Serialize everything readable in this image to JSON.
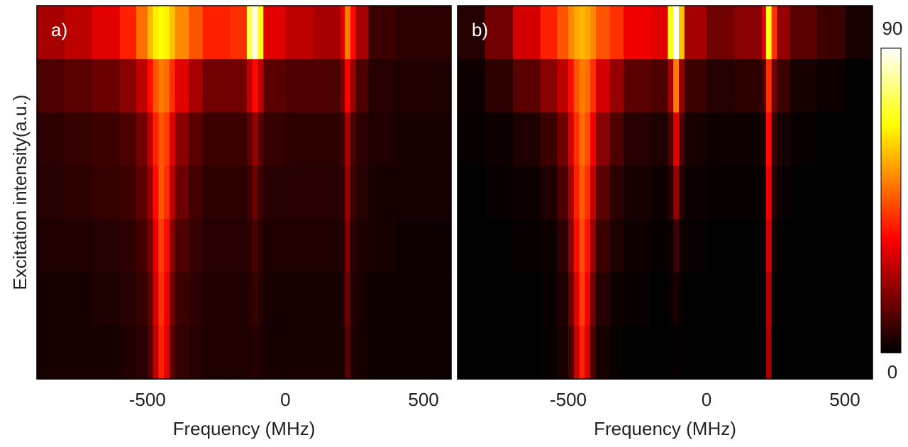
{
  "chart_data": [
    {
      "type": "heatmap",
      "label": "a)",
      "xlabel": "Frequency (MHz)",
      "ylabel": "Excitation intensity(a.u.)",
      "xlim": [
        -900,
        600
      ],
      "xticks": [
        -500,
        0,
        500
      ],
      "colormap": "hot",
      "zlim": [
        0,
        90
      ],
      "xbins": [
        -900,
        -800,
        -700,
        -600,
        -540,
        -500,
        -480,
        -460,
        -440,
        -420,
        -400,
        -350,
        -300,
        -200,
        -140,
        -120,
        -100,
        -80,
        0,
        100,
        200,
        215,
        235,
        255,
        300,
        400,
        500,
        600
      ],
      "z": [
        [
          22,
          25,
          30,
          38,
          48,
          58,
          65,
          68,
          66,
          60,
          52,
          45,
          38,
          40,
          75,
          88,
          70,
          30,
          25,
          22,
          30,
          50,
          35,
          22,
          8,
          6,
          6
        ],
        [
          10,
          12,
          14,
          18,
          25,
          35,
          45,
          50,
          48,
          40,
          30,
          22,
          15,
          15,
          25,
          35,
          25,
          12,
          10,
          10,
          15,
          33,
          20,
          10,
          5,
          4,
          4
        ],
        [
          6,
          7,
          8,
          10,
          15,
          25,
          38,
          45,
          42,
          30,
          18,
          12,
          8,
          8,
          12,
          20,
          12,
          7,
          6,
          6,
          8,
          22,
          10,
          6,
          4,
          3,
          3
        ],
        [
          5,
          6,
          7,
          8,
          12,
          20,
          35,
          45,
          40,
          25,
          14,
          9,
          6,
          6,
          8,
          14,
          8,
          5,
          5,
          5,
          6,
          20,
          8,
          5,
          3,
          3,
          3
        ],
        [
          4,
          4,
          5,
          6,
          9,
          15,
          30,
          42,
          35,
          18,
          10,
          7,
          5,
          5,
          6,
          10,
          6,
          4,
          4,
          4,
          5,
          17,
          6,
          4,
          3,
          2,
          2
        ],
        [
          3,
          3,
          4,
          5,
          7,
          12,
          28,
          40,
          32,
          15,
          8,
          6,
          4,
          4,
          5,
          7,
          5,
          3,
          3,
          3,
          4,
          14,
          5,
          3,
          2,
          2,
          2
        ],
        [
          3,
          3,
          3,
          4,
          6,
          10,
          25,
          38,
          30,
          12,
          7,
          5,
          4,
          4,
          4,
          5,
          4,
          3,
          3,
          3,
          3,
          12,
          4,
          3,
          2,
          2,
          2
        ]
      ]
    },
    {
      "type": "heatmap",
      "label": "b)",
      "xlabel": "Frequency (MHz)",
      "xlim": [
        -900,
        600
      ],
      "xticks": [
        -500,
        0,
        500
      ],
      "colormap": "hot",
      "zlim": [
        0,
        90
      ],
      "zticks": [
        0,
        90
      ],
      "colorbar": true,
      "xbins": [
        -900,
        -800,
        -700,
        -600,
        -540,
        -500,
        -480,
        -460,
        -440,
        -420,
        -400,
        -350,
        -300,
        -200,
        -140,
        -120,
        -100,
        -80,
        0,
        100,
        200,
        215,
        235,
        255,
        300,
        400,
        500,
        600
      ],
      "z": [
        [
          5,
          15,
          28,
          38,
          45,
          52,
          56,
          58,
          56,
          52,
          45,
          40,
          32,
          30,
          70,
          90,
          60,
          22,
          15,
          18,
          30,
          70,
          40,
          20,
          12,
          8,
          3
        ],
        [
          2,
          6,
          12,
          18,
          25,
          35,
          45,
          50,
          48,
          40,
          28,
          20,
          12,
          10,
          22,
          50,
          20,
          8,
          5,
          6,
          10,
          40,
          15,
          8,
          3,
          2,
          0
        ],
        [
          1,
          2,
          4,
          8,
          15,
          28,
          40,
          48,
          44,
          32,
          18,
          10,
          5,
          4,
          10,
          30,
          10,
          3,
          2,
          2,
          4,
          35,
          8,
          3,
          1,
          0,
          0
        ],
        [
          0,
          1,
          2,
          4,
          10,
          22,
          38,
          46,
          40,
          26,
          12,
          6,
          3,
          2,
          5,
          20,
          5,
          2,
          1,
          1,
          2,
          32,
          5,
          1,
          0,
          0,
          0
        ],
        [
          0,
          0,
          1,
          2,
          6,
          18,
          35,
          44,
          36,
          20,
          8,
          4,
          2,
          1,
          2,
          8,
          2,
          1,
          0,
          0,
          1,
          28,
          3,
          0,
          0,
          0,
          0
        ],
        [
          0,
          0,
          0,
          1,
          4,
          14,
          30,
          42,
          32,
          14,
          5,
          2,
          1,
          0,
          1,
          3,
          1,
          0,
          0,
          0,
          0,
          24,
          1,
          0,
          0,
          0,
          0
        ],
        [
          0,
          0,
          0,
          1,
          3,
          10,
          26,
          38,
          28,
          10,
          3,
          1,
          0,
          0,
          0,
          1,
          0,
          0,
          0,
          0,
          0,
          22,
          0,
          0,
          0,
          0,
          0
        ]
      ]
    }
  ]
}
